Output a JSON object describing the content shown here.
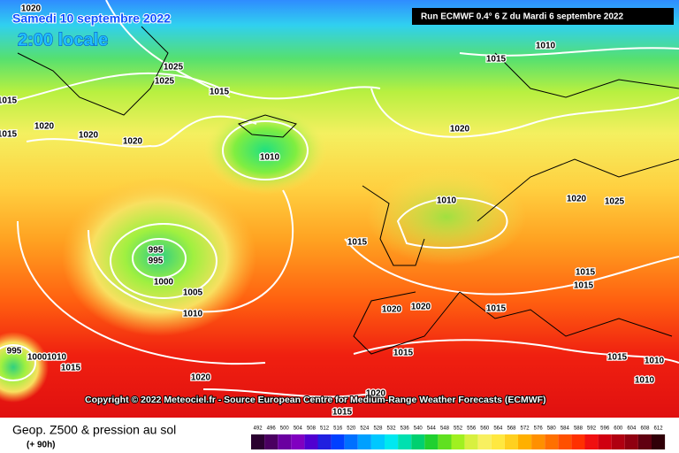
{
  "header": {
    "date": "Samedi 10 septembre 2022",
    "local_time": "2:00 locale",
    "run": "Run ECMWF 0.4° 6 Z du Mardi 6 septembre 2022"
  },
  "copyright": "Copyright © 2022 Meteociel.fr - Source European Centre for Medium-Range Weather Forecasts (ECMWF)",
  "footer": {
    "title": "Geop. Z500 & pression au sol",
    "lead": "(+ 90h)"
  },
  "isobar_labels": [
    "1020",
    "1025",
    "1025",
    "1015",
    "1015",
    "1015",
    "1020",
    "1020",
    "1020",
    "1010",
    "1015",
    "1010",
    "1020",
    "1010",
    "1020",
    "1025",
    "1015",
    "995",
    "995",
    "1000",
    "1005",
    "1010",
    "1020",
    "1020",
    "1015",
    "1015",
    "1015",
    "1015",
    "1015",
    "1010",
    "1020",
    "1015",
    "1010",
    "1000",
    "995",
    "1020",
    "1015",
    "1010"
  ],
  "colorbar_labels": [
    "492",
    "496",
    "500",
    "504",
    "508",
    "512",
    "516",
    "520",
    "524",
    "528",
    "532",
    "536",
    "540",
    "544",
    "548",
    "552",
    "556",
    "560",
    "564",
    "568",
    "572",
    "576",
    "580",
    "584",
    "588",
    "592",
    "596",
    "600",
    "604",
    "608",
    "612"
  ]
}
